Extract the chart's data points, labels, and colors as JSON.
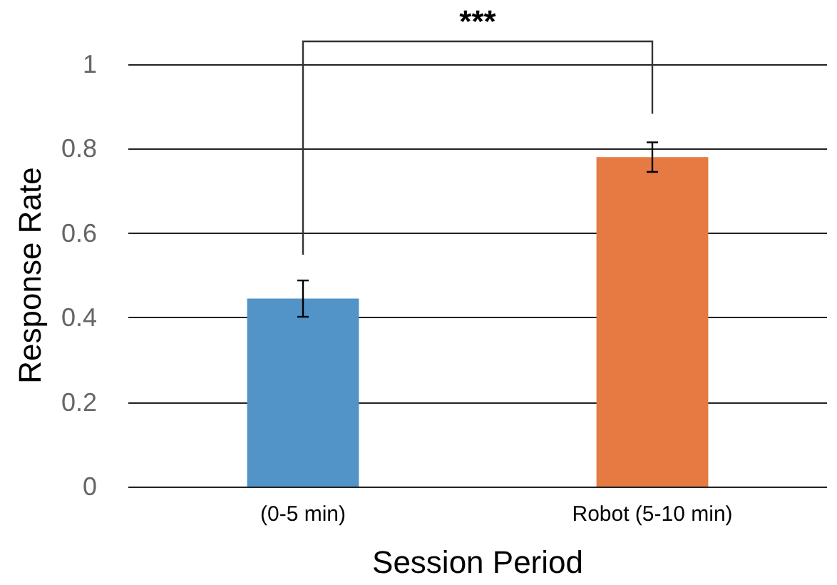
{
  "chart_data": {
    "type": "bar",
    "categories": [
      "(0-5 min)",
      "Robot (5-10 min)"
    ],
    "values": [
      0.445,
      0.78
    ],
    "colors": [
      "#5294c8",
      "#e57a43"
    ],
    "errors": [
      0.043,
      0.035
    ],
    "xlabel": "Session Period",
    "ylabel": "Response Rate",
    "ylim": [
      0,
      1
    ],
    "yticks": [
      0,
      0.2,
      0.4,
      0.6,
      0.8,
      1
    ],
    "grid": "y",
    "annotations": [
      "***"
    ]
  }
}
